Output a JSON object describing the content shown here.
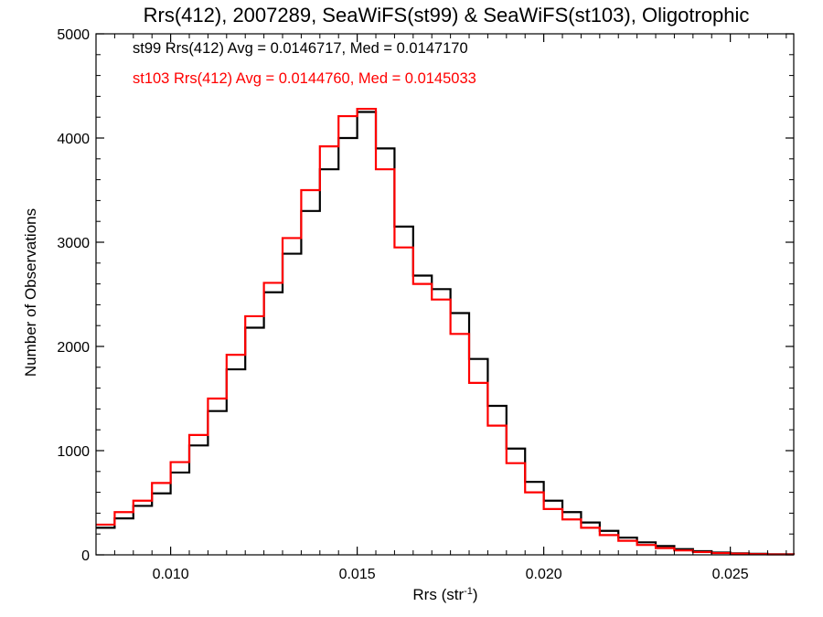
{
  "chart_data": {
    "type": "line",
    "title": "Rrs(412), 2007289, SeaWiFS(st99) & SeaWiFS(st103), Oligotrophic",
    "xlabel_main": "Rrs (str",
    "xlabel_sup": "-1",
    "xlabel_close": ")",
    "ylabel": "Number of Observations",
    "xlim": [
      0.008,
      0.0267
    ],
    "ylim": [
      0,
      5000
    ],
    "grid": false,
    "legend_position": "top-left",
    "x_ticks": [
      {
        "value": 0.01,
        "label": "0.010"
      },
      {
        "value": 0.015,
        "label": "0.015"
      },
      {
        "value": 0.02,
        "label": "0.020"
      },
      {
        "value": 0.025,
        "label": "0.025"
      }
    ],
    "y_ticks": [
      {
        "value": 0,
        "label": "0"
      },
      {
        "value": 1000,
        "label": "1000"
      },
      {
        "value": 2000,
        "label": "2000"
      },
      {
        "value": 3000,
        "label": "3000"
      },
      {
        "value": 4000,
        "label": "4000"
      },
      {
        "value": 5000,
        "label": "5000"
      }
    ],
    "annotations": [
      {
        "text": "st99 Rrs(412) Avg = 0.0146717, Med = 0.0147170",
        "color": "#000000"
      },
      {
        "text": "st103 Rrs(412) Avg = 0.0144760, Med = 0.0145033",
        "color": "#ff0000"
      }
    ],
    "series": [
      {
        "name": "st99",
        "color": "#000000",
        "x": [
          0.008,
          0.0085,
          0.009,
          0.0095,
          0.01,
          0.0105,
          0.011,
          0.0115,
          0.012,
          0.0125,
          0.013,
          0.0135,
          0.014,
          0.0145,
          0.015,
          0.0155,
          0.016,
          0.0165,
          0.017,
          0.0175,
          0.018,
          0.0185,
          0.019,
          0.0195,
          0.02,
          0.0205,
          0.021,
          0.0215,
          0.022,
          0.0225,
          0.023,
          0.0235,
          0.024,
          0.0245,
          0.025,
          0.0255,
          0.026,
          0.0267
        ],
        "y": [
          260,
          350,
          470,
          590,
          790,
          1050,
          1380,
          1780,
          2180,
          2520,
          2890,
          3300,
          3700,
          4000,
          4250,
          3900,
          3150,
          2680,
          2550,
          2320,
          1880,
          1430,
          1020,
          700,
          520,
          410,
          310,
          230,
          165,
          120,
          85,
          55,
          35,
          22,
          15,
          10,
          6,
          3
        ]
      },
      {
        "name": "st103",
        "color": "#ff0000",
        "x": [
          0.008,
          0.0085,
          0.009,
          0.0095,
          0.01,
          0.0105,
          0.011,
          0.0115,
          0.012,
          0.0125,
          0.013,
          0.0135,
          0.014,
          0.0145,
          0.015,
          0.0155,
          0.016,
          0.0165,
          0.017,
          0.0175,
          0.018,
          0.0185,
          0.019,
          0.0195,
          0.02,
          0.0205,
          0.021,
          0.0215,
          0.022,
          0.0225,
          0.023,
          0.0235,
          0.024,
          0.0245,
          0.025,
          0.0255,
          0.026,
          0.0267
        ],
        "y": [
          290,
          410,
          520,
          690,
          890,
          1150,
          1500,
          1920,
          2290,
          2610,
          3040,
          3500,
          3920,
          4210,
          4280,
          3700,
          2950,
          2600,
          2450,
          2120,
          1650,
          1240,
          880,
          600,
          440,
          340,
          260,
          190,
          135,
          95,
          65,
          42,
          27,
          17,
          11,
          7,
          4,
          2
        ]
      }
    ]
  }
}
